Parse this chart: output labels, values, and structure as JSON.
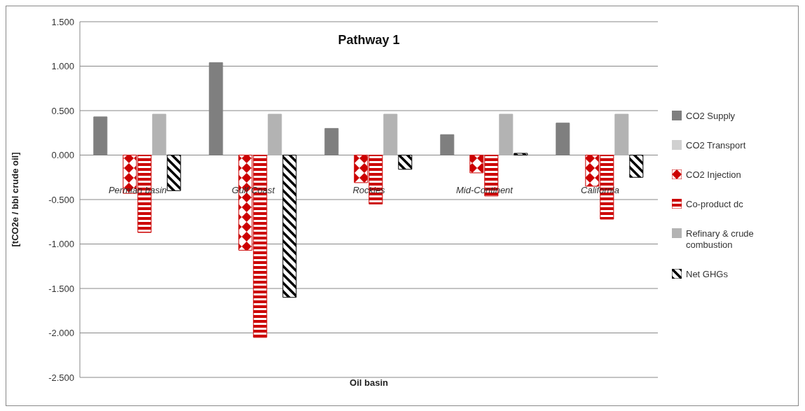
{
  "chart_data": {
    "type": "bar",
    "title": "Pathway 1",
    "xlabel": "Oil basin",
    "ylabel": "[tCO2e / bbl crude oil]",
    "categories": [
      "Permian basin",
      "Gulf Coast",
      "Rockies",
      "Mid-Continent",
      "California"
    ],
    "series": [
      {
        "name": "CO2 Supply",
        "color": "#7f7f7f",
        "values": [
          0.43,
          1.04,
          0.3,
          0.23,
          0.36
        ]
      },
      {
        "name": "CO2 Transport",
        "color": "#d0d0d0",
        "values": [
          0,
          0,
          0,
          0,
          0
        ]
      },
      {
        "name": "CO2 Injection",
        "color": "#cc0000",
        "values": [
          -0.43,
          -1.07,
          -0.31,
          -0.2,
          -0.35
        ]
      },
      {
        "name": "Co-product dc",
        "color": "#cc0000",
        "values": [
          -0.87,
          -2.05,
          -0.55,
          -0.46,
          -0.72
        ]
      },
      {
        "name": "Refinary & crude combustion",
        "color": "#b3b3b3",
        "values": [
          0.46,
          0.46,
          0.46,
          0.46,
          0.46
        ]
      },
      {
        "name": "Net GHGs",
        "color": "#000000",
        "values": [
          -0.4,
          -1.6,
          -0.16,
          0.02,
          -0.25
        ]
      }
    ],
    "ylim": [
      -2.5,
      1.5
    ],
    "yticks": [
      {
        "value": -2.5,
        "label": "-2.500"
      },
      {
        "value": -2,
        "label": "-2.000"
      },
      {
        "value": -1.5,
        "label": "-1.500"
      },
      {
        "value": -1,
        "label": "-1.000"
      },
      {
        "value": -0.5,
        "label": "-0.500"
      },
      {
        "value": 0,
        "label": "0.000"
      },
      {
        "value": 0.5,
        "label": "0.500"
      },
      {
        "value": 1,
        "label": "1.000"
      },
      {
        "value": 1.5,
        "label": "1.500"
      }
    ],
    "grid": "y",
    "legend": "right"
  }
}
